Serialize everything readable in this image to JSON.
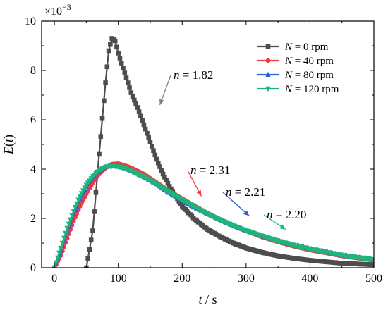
{
  "chart_data": {
    "type": "line",
    "xlabel_var": "t",
    "xlabel_unit": " / s",
    "ylabel_func": "E",
    "ylabel_arg": "t",
    "y_multiplier_base": "×10",
    "y_multiplier_exp": "−3",
    "xlim": [
      -20,
      500
    ],
    "ylim": [
      0,
      10
    ],
    "x_ticks": [
      0,
      100,
      200,
      300,
      400,
      500
    ],
    "x_tick_labels": [
      "0",
      "100",
      "200",
      "300",
      "400",
      "500"
    ],
    "y_ticks": [
      0,
      2,
      4,
      6,
      8,
      10
    ],
    "y_tick_labels": [
      "0",
      "2",
      "4",
      "6",
      "8",
      "10"
    ],
    "grid": false,
    "legend_position": "top-right",
    "series": [
      {
        "name": "N = 0 rpm",
        "name_var": "N",
        "name_rest": " = 0 rpm",
        "color": "#4d4d4d",
        "marker": "square",
        "x": [
          50,
          60,
          70,
          80,
          85,
          90,
          95,
          100,
          110,
          120,
          130,
          140,
          150,
          160,
          170,
          180,
          190,
          200,
          220,
          240,
          260,
          280,
          300,
          325,
          350,
          375,
          400,
          450,
          500
        ],
        "y": [
          0.0,
          1.5,
          4.6,
          7.5,
          8.8,
          9.3,
          9.2,
          8.7,
          7.9,
          7.1,
          6.5,
          5.8,
          5.1,
          4.4,
          3.8,
          3.3,
          2.9,
          2.5,
          1.95,
          1.55,
          1.25,
          1.0,
          0.8,
          0.62,
          0.48,
          0.38,
          0.3,
          0.18,
          0.12
        ]
      },
      {
        "name": "N = 40 rpm",
        "name_var": "N",
        "name_rest": " = 40 rpm",
        "color": "#f03c3c",
        "marker": "circle",
        "x": [
          0,
          10,
          20,
          30,
          40,
          50,
          60,
          70,
          80,
          90,
          100,
          110,
          120,
          140,
          160,
          180,
          200,
          220,
          240,
          260,
          280,
          300,
          325,
          350,
          375,
          400,
          450,
          500
        ],
        "y": [
          0.0,
          0.5,
          1.2,
          1.9,
          2.5,
          3.0,
          3.45,
          3.8,
          4.05,
          4.2,
          4.22,
          4.15,
          4.05,
          3.8,
          3.45,
          3.1,
          2.8,
          2.5,
          2.2,
          1.95,
          1.7,
          1.5,
          1.25,
          1.05,
          0.87,
          0.72,
          0.48,
          0.3
        ]
      },
      {
        "name": "N = 80 rpm",
        "name_var": "N",
        "name_rest": " = 80 rpm",
        "color": "#2a5fd6",
        "marker": "triangle-up",
        "x": [
          0,
          10,
          20,
          30,
          40,
          50,
          60,
          70,
          80,
          90,
          100,
          110,
          120,
          140,
          160,
          180,
          200,
          220,
          240,
          260,
          280,
          300,
          325,
          350,
          375,
          400,
          450,
          500
        ],
        "y": [
          0.0,
          0.7,
          1.5,
          2.2,
          2.8,
          3.3,
          3.7,
          3.95,
          4.1,
          4.15,
          4.12,
          4.05,
          3.95,
          3.7,
          3.4,
          3.05,
          2.75,
          2.45,
          2.2,
          1.95,
          1.72,
          1.52,
          1.3,
          1.1,
          0.93,
          0.78,
          0.52,
          0.34
        ]
      },
      {
        "name": "N = 120 rpm",
        "name_var": "N",
        "name_rest": " = 120 rpm",
        "color": "#1fb57a",
        "marker": "triangle-down",
        "x": [
          0,
          10,
          20,
          30,
          40,
          50,
          60,
          70,
          80,
          90,
          100,
          110,
          120,
          140,
          160,
          180,
          200,
          220,
          240,
          260,
          280,
          300,
          325,
          350,
          375,
          400,
          450,
          500
        ],
        "y": [
          0.0,
          0.8,
          1.6,
          2.3,
          2.9,
          3.35,
          3.7,
          3.95,
          4.08,
          4.12,
          4.1,
          4.02,
          3.92,
          3.68,
          3.38,
          3.05,
          2.75,
          2.45,
          2.18,
          1.92,
          1.7,
          1.5,
          1.28,
          1.08,
          0.9,
          0.75,
          0.5,
          0.32
        ]
      }
    ],
    "annotations": [
      {
        "var": "n",
        "text": " = 1.82",
        "color": "#808080",
        "target_x": 165,
        "target_y": 6.6
      },
      {
        "var": "n",
        "text": " = 2.31",
        "color": "#f03c3c",
        "target_x": 230,
        "target_y": 2.9
      },
      {
        "var": "n",
        "text": " = 2.21",
        "color": "#2a5fd6",
        "target_x": 305,
        "target_y": 2.1
      },
      {
        "var": "n",
        "text": " = 2.20",
        "color": "#1fb57a",
        "target_x": 362,
        "target_y": 1.55
      }
    ]
  }
}
